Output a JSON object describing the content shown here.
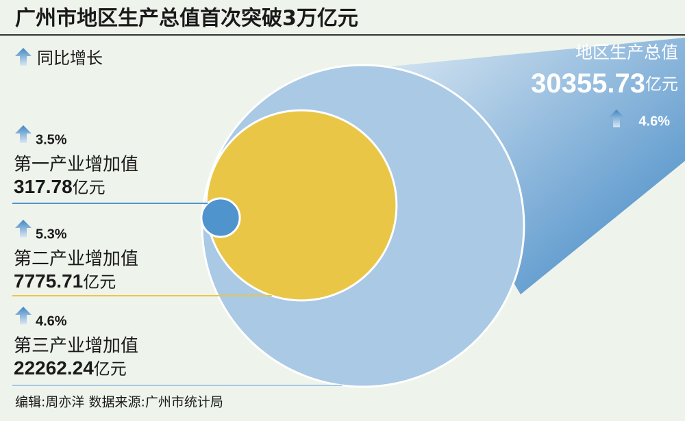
{
  "title": "广州市地区生产总值首次突破3万亿元",
  "legend": "同比增长",
  "chart_data": {
    "type": "nested-circle",
    "categories": [
      "第一产业增加值",
      "第二产业增加值",
      "第三产业增加值"
    ],
    "values": [
      317.78,
      7775.71,
      22262.24
    ],
    "unit": "亿元",
    "growth": [
      "3.5%",
      "5.3%",
      "4.6%"
    ],
    "colors": [
      "#4f94cd",
      "#e9c646",
      "#a9c9e5"
    ],
    "total": {
      "name": "地区生产总值",
      "value": 30355.73,
      "unit": "亿元",
      "growth": "4.6%"
    }
  },
  "footer": "编辑:周亦洋  数据来源:广州市统计局"
}
